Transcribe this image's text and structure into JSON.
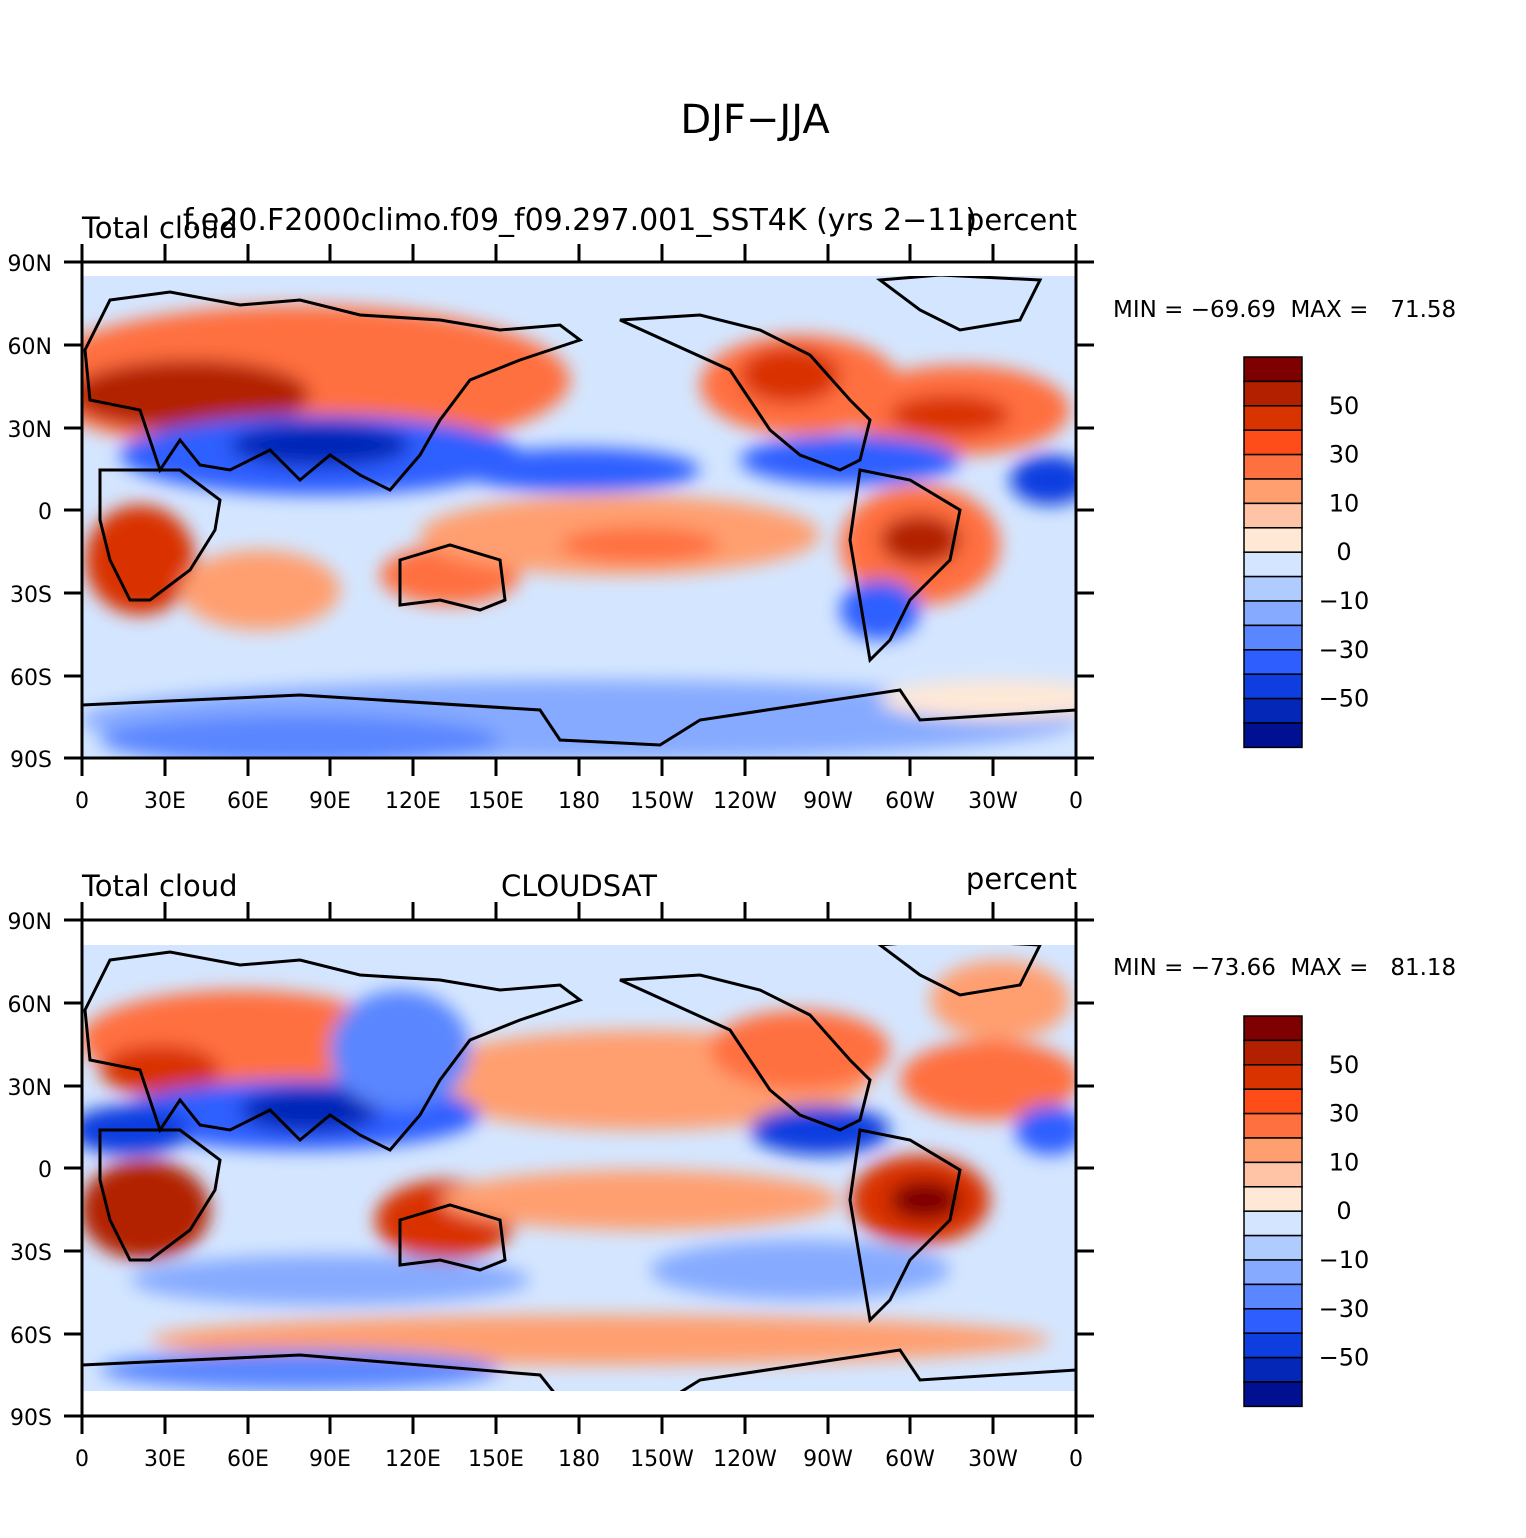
{
  "figure": {
    "title": "DJF−JJA"
  },
  "panels": [
    {
      "left_label": "Total cloud",
      "center_label": "f.e20.F2000climo.f09_f09.297.001_SST4K (yrs 2−11)",
      "right_label": "percent",
      "min_max": "MIN = −69.69  MAX =   71.58"
    },
    {
      "left_label": "Total cloud",
      "center_label": "CLOUDSAT",
      "right_label": "percent",
      "min_max": "MIN = −73.66  MAX =   81.18"
    }
  ],
  "axes": {
    "lat_ticks": [
      "90N",
      "60N",
      "30N",
      "0",
      "30S",
      "60S",
      "90S"
    ],
    "lon_ticks": [
      "0",
      "30E",
      "60E",
      "90E",
      "120E",
      "150E",
      "180",
      "150W",
      "120W",
      "90W",
      "60W",
      "30W",
      "0"
    ]
  },
  "colorbar": {
    "colors": [
      "#7f0000",
      "#b22000",
      "#d93300",
      "#ff4d1a",
      "#ff7040",
      "#ff9f70",
      "#ffc4a6",
      "#ffe8d6",
      "#d4e6ff",
      "#b0ccff",
      "#86aaff",
      "#5a86ff",
      "#2f5eff",
      "#0f3ee0",
      "#0527b8",
      "#001090"
    ],
    "labels": [
      "50",
      "30",
      "10",
      "0",
      "−10",
      "−30",
      "−50"
    ]
  },
  "chart_data": [
    {
      "type": "heatmap",
      "title": "DJF−JJA",
      "subtitle": "f.e20.F2000climo.f09_f09.297.001_SST4K (yrs 2−11)",
      "variable": "Total cloud",
      "units": "percent",
      "x_range": [
        0,
        360
      ],
      "y_range": [
        -90,
        90
      ],
      "min": -69.69,
      "max": 71.58,
      "colorbar_levels": [
        -50,
        -30,
        -10,
        0,
        10,
        30,
        50
      ]
    },
    {
      "type": "heatmap",
      "title": "DJF−JJA",
      "subtitle": "CLOUDSAT",
      "variable": "Total cloud",
      "units": "percent",
      "x_range": [
        0,
        360
      ],
      "y_range": [
        -90,
        90
      ],
      "min": -73.66,
      "max": 81.18,
      "colorbar_levels": [
        -50,
        -30,
        -10,
        0,
        10,
        30,
        50
      ]
    }
  ]
}
